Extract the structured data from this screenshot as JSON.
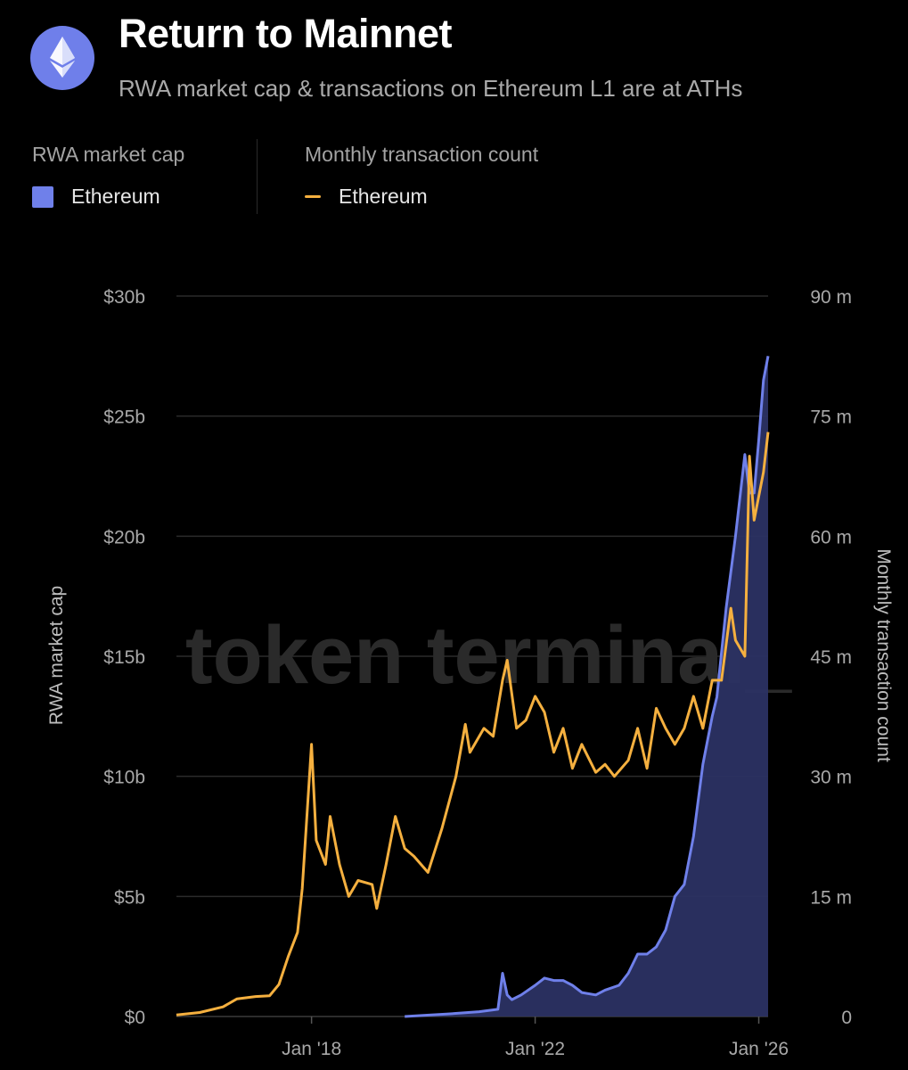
{
  "header": {
    "title": "Return to Mainnet",
    "subtitle": "RWA market cap & transactions on Ethereum L1 are at ATHs"
  },
  "legend": {
    "left_heading": "RWA market cap",
    "left_entry": "Ethereum",
    "right_heading": "Monthly transaction count",
    "right_entry": "Ethereum"
  },
  "watermark": "token terminal_",
  "colors": {
    "market_cap": "#6f80ea",
    "transactions": "#f5b03f",
    "logo_bg": "#6f7fea"
  },
  "icons": {
    "logo": "ethereum-diamond-icon"
  },
  "chart_data": {
    "type": "line",
    "x_ticks": [
      "Jan '18",
      "Jan '22",
      "Jan '26"
    ],
    "y_left": {
      "label": "RWA market cap",
      "ticks": [
        "$0",
        "$5b",
        "$10b",
        "$15b",
        "$20b",
        "$25b",
        "$30b"
      ],
      "ylim": [
        0,
        30
      ]
    },
    "y_right": {
      "label": "Monthly transaction count",
      "ticks": [
        "0",
        "15 m",
        "30 m",
        "45 m",
        "60 m",
        "75 m",
        "90 m"
      ],
      "ylim": [
        0,
        90
      ]
    },
    "x_range": [
      "2015-08",
      "2026-03"
    ],
    "grid": true,
    "series": [
      {
        "name": "Ethereum",
        "axis": "left",
        "type": "area",
        "points": [
          [
            "2019-09",
            0.0
          ],
          [
            "2020-01",
            0.05
          ],
          [
            "2020-06",
            0.1
          ],
          [
            "2021-01",
            0.2
          ],
          [
            "2021-05",
            0.3
          ],
          [
            "2021-06",
            1.8
          ],
          [
            "2021-07",
            0.9
          ],
          [
            "2021-08",
            0.7
          ],
          [
            "2021-10",
            0.9
          ],
          [
            "2022-01",
            1.3
          ],
          [
            "2022-03",
            1.6
          ],
          [
            "2022-05",
            1.5
          ],
          [
            "2022-07",
            1.5
          ],
          [
            "2022-09",
            1.3
          ],
          [
            "2022-11",
            1.0
          ],
          [
            "2023-02",
            0.9
          ],
          [
            "2023-04",
            1.1
          ],
          [
            "2023-07",
            1.3
          ],
          [
            "2023-09",
            1.8
          ],
          [
            "2023-11",
            2.6
          ],
          [
            "2024-01",
            2.6
          ],
          [
            "2024-03",
            2.9
          ],
          [
            "2024-05",
            3.6
          ],
          [
            "2024-07",
            5.0
          ],
          [
            "2024-09",
            5.5
          ],
          [
            "2024-11",
            7.5
          ],
          [
            "2025-01",
            10.5
          ],
          [
            "2025-03",
            12.5
          ],
          [
            "2025-04",
            13.3
          ],
          [
            "2025-06",
            17.0
          ],
          [
            "2025-08",
            20.0
          ],
          [
            "2025-10",
            23.4
          ],
          [
            "2025-11",
            21.8
          ],
          [
            "2025-12",
            21.8
          ],
          [
            "2026-01",
            24.0
          ],
          [
            "2026-02",
            26.5
          ],
          [
            "2026-03",
            27.5
          ]
        ]
      },
      {
        "name": "Ethereum",
        "axis": "right",
        "type": "line",
        "points": [
          [
            "2015-08",
            0.2
          ],
          [
            "2016-01",
            0.5
          ],
          [
            "2016-06",
            1.2
          ],
          [
            "2016-09",
            2.2
          ],
          [
            "2017-01",
            2.5
          ],
          [
            "2017-04",
            2.6
          ],
          [
            "2017-06",
            4.0
          ],
          [
            "2017-08",
            7.5
          ],
          [
            "2017-10",
            10.5
          ],
          [
            "2017-11",
            16.0
          ],
          [
            "2018-01",
            34.0
          ],
          [
            "2018-02",
            22.0
          ],
          [
            "2018-04",
            19.0
          ],
          [
            "2018-05",
            25.0
          ],
          [
            "2018-07",
            19.0
          ],
          [
            "2018-09",
            15.0
          ],
          [
            "2018-11",
            17.0
          ],
          [
            "2019-02",
            16.5
          ],
          [
            "2019-03",
            13.5
          ],
          [
            "2019-05",
            19.0
          ],
          [
            "2019-07",
            25.0
          ],
          [
            "2019-09",
            21.0
          ],
          [
            "2019-11",
            20.0
          ],
          [
            "2020-02",
            18.0
          ],
          [
            "2020-05",
            23.5
          ],
          [
            "2020-08",
            30.0
          ],
          [
            "2020-10",
            36.5
          ],
          [
            "2020-11",
            33.0
          ],
          [
            "2021-02",
            36.0
          ],
          [
            "2021-04",
            35.0
          ],
          [
            "2021-06",
            42.0
          ],
          [
            "2021-07",
            44.5
          ],
          [
            "2021-09",
            36.0
          ],
          [
            "2021-11",
            37.0
          ],
          [
            "2022-01",
            40.0
          ],
          [
            "2022-03",
            38.0
          ],
          [
            "2022-05",
            33.0
          ],
          [
            "2022-07",
            36.0
          ],
          [
            "2022-09",
            31.0
          ],
          [
            "2022-11",
            34.0
          ],
          [
            "2023-02",
            30.5
          ],
          [
            "2023-04",
            31.5
          ],
          [
            "2023-06",
            30.0
          ],
          [
            "2023-09",
            32.0
          ],
          [
            "2023-11",
            36.0
          ],
          [
            "2024-01",
            31.0
          ],
          [
            "2024-03",
            38.5
          ],
          [
            "2024-05",
            36.0
          ],
          [
            "2024-07",
            34.0
          ],
          [
            "2024-09",
            36.0
          ],
          [
            "2024-11",
            40.0
          ],
          [
            "2025-01",
            36.0
          ],
          [
            "2025-03",
            42.0
          ],
          [
            "2025-05",
            42.0
          ],
          [
            "2025-07",
            51.0
          ],
          [
            "2025-08",
            47.0
          ],
          [
            "2025-10",
            45.0
          ],
          [
            "2025-11",
            70.0
          ],
          [
            "2025-12",
            62.0
          ],
          [
            "2026-02",
            68.0
          ],
          [
            "2026-03",
            73.0
          ]
        ]
      }
    ]
  }
}
